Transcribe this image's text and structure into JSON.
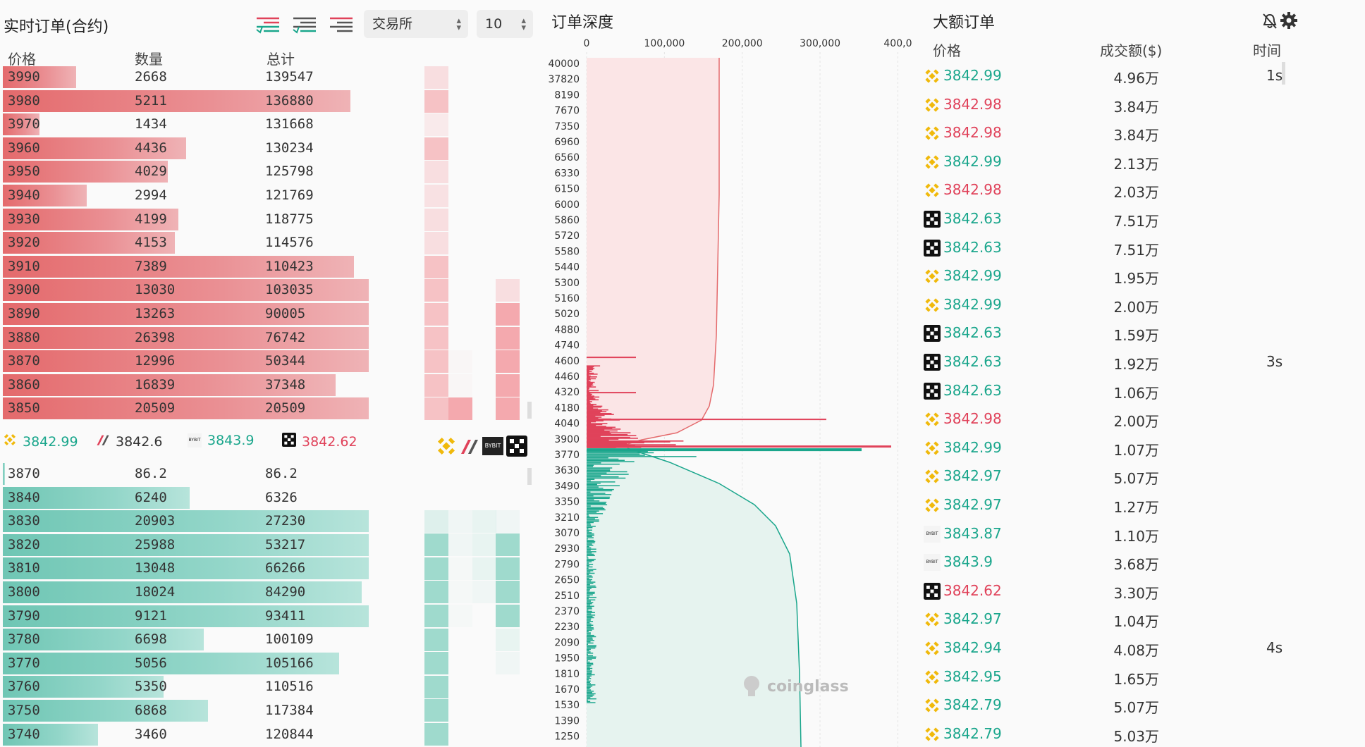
{
  "orderbook": {
    "title": "实时订单(合约)",
    "exchange_select": "交易所",
    "depth_select": "10",
    "headers": {
      "price": "价格",
      "qty": "数量",
      "total": "总计"
    },
    "asks": [
      {
        "price": "3990",
        "qty": "2668",
        "total": "139547",
        "fill": 0.2
      },
      {
        "price": "3980",
        "qty": "5211",
        "total": "136880",
        "fill": 0.95
      },
      {
        "price": "3970",
        "qty": "1434",
        "total": "131668",
        "fill": 0.1
      },
      {
        "price": "3960",
        "qty": "4436",
        "total": "130234",
        "fill": 0.5
      },
      {
        "price": "3950",
        "qty": "4029",
        "total": "125798",
        "fill": 0.45
      },
      {
        "price": "3940",
        "qty": "2994",
        "total": "121769",
        "fill": 0.23
      },
      {
        "price": "3930",
        "qty": "4199",
        "total": "118775",
        "fill": 0.48
      },
      {
        "price": "3920",
        "qty": "4153",
        "total": "114576",
        "fill": 0.47
      },
      {
        "price": "3910",
        "qty": "7389",
        "total": "110423",
        "fill": 0.96
      },
      {
        "price": "3900",
        "qty": "13030",
        "total": "103035",
        "fill": 1.0
      },
      {
        "price": "3890",
        "qty": "13263",
        "total": "90005",
        "fill": 1.0
      },
      {
        "price": "3880",
        "qty": "26398",
        "total": "76742",
        "fill": 1.0
      },
      {
        "price": "3870",
        "qty": "12996",
        "total": "50344",
        "fill": 1.0
      },
      {
        "price": "3860",
        "qty": "16839",
        "total": "37348",
        "fill": 0.91
      },
      {
        "price": "3850",
        "qty": "20509",
        "total": "20509",
        "fill": 1.0
      }
    ],
    "bids": [
      {
        "price": "3870",
        "qty": "86.2",
        "total": "86.2",
        "fill": 0.005
      },
      {
        "price": "3840",
        "qty": "6240",
        "total": "6326",
        "fill": 0.51
      },
      {
        "price": "3830",
        "qty": "20903",
        "total": "27230",
        "fill": 1.0
      },
      {
        "price": "3820",
        "qty": "25988",
        "total": "53217",
        "fill": 1.0
      },
      {
        "price": "3810",
        "qty": "13048",
        "total": "66266",
        "fill": 1.0
      },
      {
        "price": "3800",
        "qty": "18024",
        "total": "84290",
        "fill": 0.98
      },
      {
        "price": "3790",
        "qty": "9121",
        "total": "93411",
        "fill": 1.0
      },
      {
        "price": "3780",
        "qty": "6698",
        "total": "100109",
        "fill": 0.55
      },
      {
        "price": "3770",
        "qty": "5056",
        "total": "105166",
        "fill": 0.92
      },
      {
        "price": "3760",
        "qty": "5350",
        "total": "110516",
        "fill": 0.44
      },
      {
        "price": "3750",
        "qty": "6868",
        "total": "117384",
        "fill": 0.56
      },
      {
        "price": "3740",
        "qty": "3460",
        "total": "120844",
        "fill": 0.26
      }
    ],
    "tickers": [
      {
        "exchange": "binance-icon",
        "price": "3842.99",
        "color": "green"
      },
      {
        "exchange": "bitmex-icon",
        "price": "3842.6",
        "color": "dark"
      },
      {
        "exchange": "bybit-icon",
        "price": "3843.9",
        "color": "green"
      },
      {
        "exchange": "okx-icon",
        "price": "3842.62",
        "color": "red"
      }
    ]
  },
  "depth": {
    "title": "订单深度",
    "x_ticks": [
      "0",
      "100,000",
      "200,000",
      "300,000",
      "400,0"
    ],
    "y_ticks": [
      "40000",
      "37820",
      "8190",
      "7670",
      "7350",
      "6960",
      "6560",
      "6330",
      "6150",
      "6000",
      "5860",
      "5720",
      "5580",
      "5440",
      "5300",
      "5160",
      "5020",
      "4880",
      "4740",
      "4600",
      "4460",
      "4320",
      "4180",
      "4040",
      "3900",
      "3770",
      "3630",
      "3490",
      "3350",
      "3210",
      "3070",
      "2930",
      "2790",
      "2650",
      "2510",
      "2370",
      "2230",
      "2090",
      "1950",
      "1810",
      "1670",
      "1530",
      "1390",
      "1250"
    ],
    "watermark": "coinglass"
  },
  "bigorders": {
    "title": "大额订单",
    "headers": {
      "price": "价格",
      "amount": "成交额($)",
      "time": "时间"
    },
    "rows": [
      {
        "icon": "binance-icon",
        "price": "3842.99",
        "color": "green",
        "amount": "4.96万",
        "time": "1s"
      },
      {
        "icon": "binance-icon",
        "price": "3842.98",
        "color": "red",
        "amount": "3.84万",
        "time": ""
      },
      {
        "icon": "binance-icon",
        "price": "3842.98",
        "color": "red",
        "amount": "3.84万",
        "time": ""
      },
      {
        "icon": "binance-icon",
        "price": "3842.99",
        "color": "green",
        "amount": "2.13万",
        "time": ""
      },
      {
        "icon": "binance-icon",
        "price": "3842.98",
        "color": "red",
        "amount": "2.03万",
        "time": ""
      },
      {
        "icon": "okx-icon",
        "price": "3842.63",
        "color": "green",
        "amount": "7.51万",
        "time": ""
      },
      {
        "icon": "okx-icon",
        "price": "3842.63",
        "color": "green",
        "amount": "7.51万",
        "time": ""
      },
      {
        "icon": "binance-icon",
        "price": "3842.99",
        "color": "green",
        "amount": "1.95万",
        "time": ""
      },
      {
        "icon": "binance-icon",
        "price": "3842.99",
        "color": "green",
        "amount": "2.00万",
        "time": ""
      },
      {
        "icon": "okx-icon",
        "price": "3842.63",
        "color": "green",
        "amount": "1.59万",
        "time": ""
      },
      {
        "icon": "okx-icon",
        "price": "3842.63",
        "color": "green",
        "amount": "1.92万",
        "time": "3s"
      },
      {
        "icon": "okx-icon",
        "price": "3842.63",
        "color": "green",
        "amount": "1.06万",
        "time": ""
      },
      {
        "icon": "binance-icon",
        "price": "3842.98",
        "color": "red",
        "amount": "2.00万",
        "time": ""
      },
      {
        "icon": "binance-icon",
        "price": "3842.99",
        "color": "green",
        "amount": "1.07万",
        "time": ""
      },
      {
        "icon": "binance-icon",
        "price": "3842.97",
        "color": "green",
        "amount": "5.07万",
        "time": ""
      },
      {
        "icon": "binance-icon",
        "price": "3842.97",
        "color": "green",
        "amount": "1.27万",
        "time": ""
      },
      {
        "icon": "bybit-icon",
        "price": "3843.87",
        "color": "green",
        "amount": "1.10万",
        "time": ""
      },
      {
        "icon": "bybit-icon",
        "price": "3843.9",
        "color": "green",
        "amount": "3.68万",
        "time": ""
      },
      {
        "icon": "okx-icon",
        "price": "3842.62",
        "color": "red",
        "amount": "3.30万",
        "time": ""
      },
      {
        "icon": "binance-icon",
        "price": "3842.97",
        "color": "green",
        "amount": "1.04万",
        "time": ""
      },
      {
        "icon": "binance-icon",
        "price": "3842.94",
        "color": "green",
        "amount": "4.08万",
        "time": "4s"
      },
      {
        "icon": "binance-icon",
        "price": "3842.95",
        "color": "green",
        "amount": "1.65万",
        "time": ""
      },
      {
        "icon": "binance-icon",
        "price": "3842.79",
        "color": "green",
        "amount": "5.07万",
        "time": ""
      },
      {
        "icon": "binance-icon",
        "price": "3842.79",
        "color": "green",
        "amount": "5.03万",
        "time": ""
      }
    ]
  },
  "colors": {
    "ask": "#e46a6c",
    "bid": "#6fc6b4",
    "green": "#1aa68c",
    "red": "#e0425a",
    "binance": "#f0b90b"
  }
}
